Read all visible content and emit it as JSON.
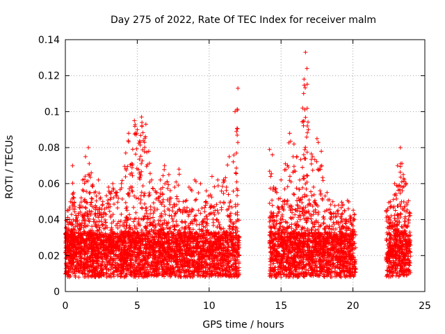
{
  "chart_data": {
    "type": "scatter",
    "title": "Day 275 of 2022, Rate Of TEC Index for receiver malm",
    "xlabel": "GPS time / hours",
    "ylabel": "ROTI / TECUs",
    "xlim": [
      0,
      25
    ],
    "ylim": [
      0,
      0.14
    ],
    "xticks": [
      0,
      5,
      10,
      15,
      20,
      25
    ],
    "xtick_labels": [
      "0",
      "5",
      "10",
      "15",
      "20",
      "25"
    ],
    "yticks": [
      0,
      0.02,
      0.04,
      0.06,
      0.08,
      0.1,
      0.12,
      0.14
    ],
    "ytick_labels": [
      "0",
      "0.02",
      "0.04",
      "0.06",
      "0.08",
      "0.1",
      "0.12",
      "0.14"
    ],
    "grid": true,
    "marker": "plus",
    "color": "#ff0000",
    "data_segments_hours": [
      [
        0,
        12.1
      ],
      [
        14.2,
        20.2
      ],
      [
        22.3,
        24.0
      ]
    ],
    "series": [
      {
        "points": [
          [
            0.0,
            0.032
          ],
          [
            0.2,
            0.045
          ],
          [
            0.4,
            0.038
          ],
          [
            0.5,
            0.07
          ],
          [
            0.6,
            0.052
          ],
          [
            0.8,
            0.041
          ],
          [
            1.0,
            0.048
          ],
          [
            1.2,
            0.062
          ],
          [
            1.4,
            0.075
          ],
          [
            1.6,
            0.08
          ],
          [
            1.8,
            0.066
          ],
          [
            2.0,
            0.055
          ],
          [
            2.3,
            0.062
          ],
          [
            2.6,
            0.05
          ],
          [
            3.0,
            0.058
          ],
          [
            3.3,
            0.06
          ],
          [
            3.6,
            0.055
          ],
          [
            3.9,
            0.06
          ],
          [
            4.2,
            0.077
          ],
          [
            4.4,
            0.088
          ],
          [
            4.6,
            0.071
          ],
          [
            4.8,
            0.095
          ],
          [
            5.0,
            0.09
          ],
          [
            5.2,
            0.083
          ],
          [
            5.3,
            0.097
          ],
          [
            5.5,
            0.083
          ],
          [
            5.6,
            0.093
          ],
          [
            5.8,
            0.078
          ],
          [
            6.0,
            0.062
          ],
          [
            6.3,
            0.055
          ],
          [
            6.6,
            0.062
          ],
          [
            6.9,
            0.07
          ],
          [
            7.2,
            0.065
          ],
          [
            7.6,
            0.058
          ],
          [
            7.9,
            0.068
          ],
          [
            8.2,
            0.05
          ],
          [
            8.6,
            0.058
          ],
          [
            9.0,
            0.062
          ],
          [
            9.4,
            0.06
          ],
          [
            9.8,
            0.056
          ],
          [
            10.2,
            0.064
          ],
          [
            10.6,
            0.062
          ],
          [
            11.0,
            0.062
          ],
          [
            11.4,
            0.075
          ],
          [
            11.8,
            0.1
          ],
          [
            12.0,
            0.113
          ],
          [
            11.9,
            0.089
          ],
          [
            14.2,
            0.079
          ],
          [
            14.4,
            0.076
          ],
          [
            14.7,
            0.055
          ],
          [
            15.0,
            0.062
          ],
          [
            15.3,
            0.071
          ],
          [
            15.6,
            0.088
          ],
          [
            15.9,
            0.082
          ],
          [
            16.1,
            0.075
          ],
          [
            16.3,
            0.062
          ],
          [
            16.5,
            0.102
          ],
          [
            16.6,
            0.118
          ],
          [
            16.7,
            0.133
          ],
          [
            16.8,
            0.124
          ],
          [
            16.9,
            0.09
          ],
          [
            17.2,
            0.075
          ],
          [
            17.5,
            0.085
          ],
          [
            17.8,
            0.078
          ],
          [
            18.2,
            0.055
          ],
          [
            18.6,
            0.05
          ],
          [
            19.0,
            0.048
          ],
          [
            19.4,
            0.045
          ],
          [
            19.8,
            0.042
          ],
          [
            20.1,
            0.043
          ],
          [
            22.3,
            0.045
          ],
          [
            22.6,
            0.05
          ],
          [
            22.9,
            0.06
          ],
          [
            23.1,
            0.07
          ],
          [
            23.3,
            0.08
          ],
          [
            23.5,
            0.065
          ],
          [
            23.7,
            0.06
          ],
          [
            23.9,
            0.042
          ]
        ]
      }
    ]
  }
}
